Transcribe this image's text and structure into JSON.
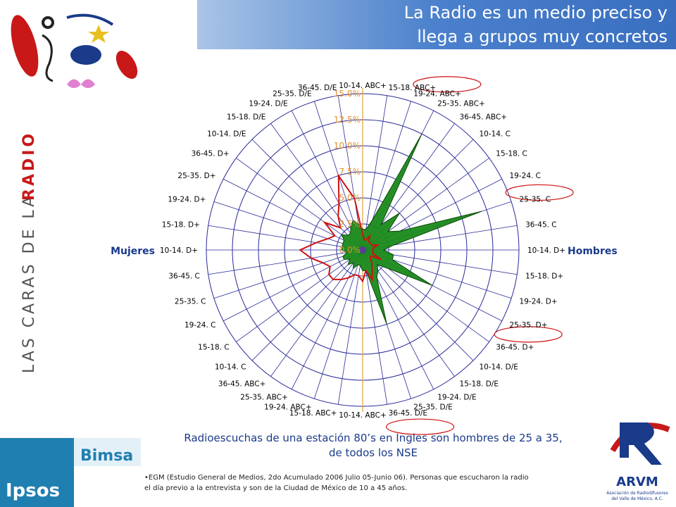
{
  "slide": {
    "title": [
      "La Radio es un medio preciso y",
      "llega a grupos muy concretos"
    ],
    "side_text": [
      "LAS CARAS DE LA",
      "RADIO"
    ],
    "caption": [
      "Radioescuchas de una estación 80’s en Ingles son hombres de 25 a 35,",
      "de todos los NSE"
    ],
    "footnote": [
      "•EGM (Estudio General de Medios, 2do Acumulado 2006 Julio 05-Junio 06). Personas que escucharon  la radio",
      "el día previo  a la entrevista  y son de la Ciudad de México de 10 a 45 años."
    ],
    "logos": {
      "bimsa": "Bimsa",
      "ipsos": "Ipsos",
      "arvm": "ARVM",
      "arvm_sub": [
        "Asociación de Radiodifusores",
        "del Valle de México, A.C."
      ]
    }
  },
  "chart_data": {
    "type": "radar",
    "categories": [
      "10-14. ABC+",
      "15-18. ABC+",
      "19-24. ABC+",
      "25-35. ABC+",
      "36-45. ABC+",
      "10-14. C",
      "15-18. C",
      "19-24. C",
      "25-35. C",
      "36-45. C",
      "10-14. D+",
      "15-18. D+",
      "19-24. D+",
      "25-35. D+",
      "36-45. D+",
      "10-14. D/E",
      "15-18. D/E",
      "19-24. D/E",
      "25-35. D/E",
      "36-45. D/E",
      "10-14. ABC+",
      "15-18. ABC+",
      "19-24. ABC+",
      "25-35. ABC+",
      "36-45. ABC+",
      "10-14. C",
      "15-18. C",
      "19-24. C",
      "25-35. C",
      "36-45. C",
      "10-14. D+",
      "15-18. D+",
      "19-24. D+",
      "25-35. D+",
      "36-45. D+",
      "10-14. D/E",
      "15-18. D/E",
      "19-24. D/E",
      "25-35. D/E",
      "36-45. D/E"
    ],
    "series": [
      {
        "color": "#1a8a1a",
        "values": [
          2,
          2,
          3,
          12.5,
          3,
          5,
          3,
          4,
          12,
          3,
          2,
          3,
          3,
          7.5,
          3,
          2,
          2.5,
          3,
          7.5,
          2,
          2,
          1.5,
          1.5,
          2,
          1.5,
          2,
          1.5,
          2,
          2,
          1.5,
          2,
          2,
          2,
          2,
          2.5,
          2,
          2,
          2.5,
          3,
          2.5
        ]
      },
      {
        "color": "#d01010",
        "values": [
          1.5,
          1,
          1,
          1.5,
          1,
          1,
          1,
          1,
          1.5,
          1,
          1,
          1,
          1,
          2,
          1,
          1,
          1.5,
          2,
          3,
          2,
          3,
          2.5,
          2.5,
          3,
          3.5,
          4,
          4,
          3.5,
          4,
          5,
          6,
          4.5,
          3.5,
          3,
          4.5,
          3,
          4,
          5,
          7.5,
          5
        ]
      }
    ],
    "ylim": [
      0,
      15
    ],
    "yticks": [
      {
        "value": 0,
        "label": "0.0%"
      },
      {
        "value": 2.5,
        "label": "2.5%"
      },
      {
        "value": 5,
        "label": "5.0%"
      },
      {
        "value": 7.5,
        "label": "7.5%"
      },
      {
        "value": 10,
        "label": "10.0%"
      },
      {
        "value": 12.5,
        "label": "12.5%"
      },
      {
        "value": 15,
        "label": "15.0%"
      }
    ],
    "annotations": {
      "left": "Mujeres",
      "right": "Hombres"
    }
  }
}
